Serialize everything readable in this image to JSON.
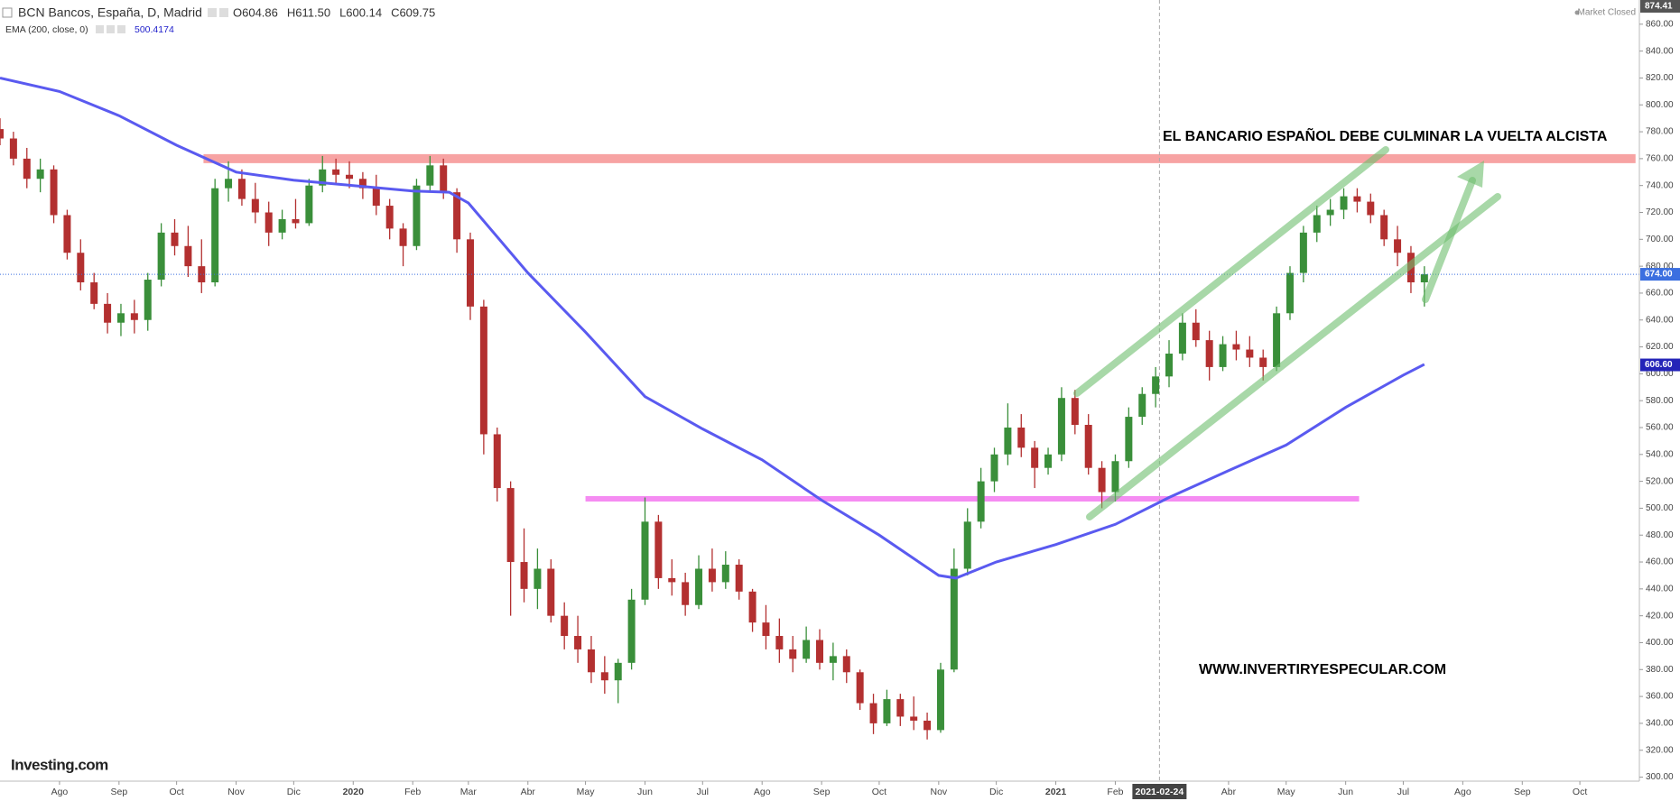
{
  "chart_data": {
    "type": "candlestick",
    "title": "BCN Bancos, España, D, Madrid",
    "ohlc_label": [
      "O604.86",
      "H611.50",
      "L600.14",
      "C609.75"
    ],
    "indicator_value": "500.4174",
    "status": "Market Closed",
    "logo": "Investing.com",
    "annotations": [
      "EL BANCARIO ESPAÑOL DEBE CULMINAR LA VUELTA ALCISTA",
      "WWW.INVERTIRYESPECULAR.COM"
    ],
    "up_color": "#3a8f3a",
    "down_color": "#b33030",
    "xlim": [
      "2019-07-01",
      "2021-11-01"
    ],
    "ylim": [
      297,
      878
    ],
    "xticks": [
      {
        "value": "2019-08-01",
        "label": "Ago"
      },
      {
        "value": "2019-09-01",
        "label": "Sep"
      },
      {
        "value": "2019-10-01",
        "label": "Oct"
      },
      {
        "value": "2019-11-01",
        "label": "Nov"
      },
      {
        "value": "2019-12-01",
        "label": "Dic"
      },
      {
        "value": "2020-01-01",
        "label": "2020"
      },
      {
        "value": "2020-02-01",
        "label": "Feb"
      },
      {
        "value": "2020-03-01",
        "label": "Mar"
      },
      {
        "value": "2020-04-01",
        "label": "Abr"
      },
      {
        "value": "2020-05-01",
        "label": "May"
      },
      {
        "value": "2020-06-01",
        "label": "Jun"
      },
      {
        "value": "2020-07-01",
        "label": "Jul"
      },
      {
        "value": "2020-08-01",
        "label": "Ago"
      },
      {
        "value": "2020-09-01",
        "label": "Sep"
      },
      {
        "value": "2020-10-01",
        "label": "Oct"
      },
      {
        "value": "2020-11-01",
        "label": "Nov"
      },
      {
        "value": "2020-12-01",
        "label": "Dic"
      },
      {
        "value": "2021-01-01",
        "label": "2021"
      },
      {
        "value": "2021-02-01",
        "label": "Feb"
      },
      {
        "value": "2021-04-01",
        "label": "Abr"
      },
      {
        "value": "2021-05-01",
        "label": "May"
      },
      {
        "value": "2021-06-01",
        "label": "Jun"
      },
      {
        "value": "2021-07-01",
        "label": "Jul"
      },
      {
        "value": "2021-08-01",
        "label": "Ago"
      },
      {
        "value": "2021-09-01",
        "label": "Sep"
      },
      {
        "value": "2021-10-01",
        "label": "Oct"
      }
    ],
    "yticks": [
      {
        "value": 300,
        "label": "300.00"
      },
      {
        "value": 320,
        "label": "320.00"
      },
      {
        "value": 340,
        "label": "340.00"
      },
      {
        "value": 360,
        "label": "360.00"
      },
      {
        "value": 380,
        "label": "380.00"
      },
      {
        "value": 400,
        "label": "400.00"
      },
      {
        "value": 420,
        "label": "420.00"
      },
      {
        "value": 440,
        "label": "440.00"
      },
      {
        "value": 460,
        "label": "460.00"
      },
      {
        "value": 480,
        "label": "480.00"
      },
      {
        "value": 500,
        "label": "500.00"
      },
      {
        "value": 520,
        "label": "520.00"
      },
      {
        "value": 540,
        "label": "540.00"
      },
      {
        "value": 560,
        "label": "560.00"
      },
      {
        "value": 580,
        "label": "580.00"
      },
      {
        "value": 600,
        "label": "600.00"
      },
      {
        "value": 620,
        "label": "620.00"
      },
      {
        "value": 640,
        "label": "640.00"
      },
      {
        "value": 660,
        "label": "660.00"
      },
      {
        "value": 680,
        "label": "680.00"
      },
      {
        "value": 700,
        "label": "700.00"
      },
      {
        "value": 720,
        "label": "720.00"
      },
      {
        "value": 740,
        "label": "740.00"
      },
      {
        "value": 760,
        "label": "760.00"
      },
      {
        "value": 780,
        "label": "780.00"
      },
      {
        "value": 800,
        "label": "800.00"
      },
      {
        "value": 820,
        "label": "820.00"
      },
      {
        "value": 840,
        "label": "840.00"
      },
      {
        "value": 860,
        "label": "860.00"
      }
    ],
    "price_markers": [
      {
        "value": 874.41,
        "label": "874.41",
        "color": "#555555"
      },
      {
        "value": 674,
        "label": "674.00",
        "color": "#3b6fe0",
        "line": true
      },
      {
        "value": 606.6,
        "label": "606.60",
        "color": "#2424b8"
      }
    ],
    "crosshair": "2021-02-24",
    "levels": [
      {
        "value": 760,
        "color": "#f7a3a3",
        "from": "2019-10-15",
        "to": "2021-10-30"
      },
      {
        "value": 507,
        "color": "#f58cf2",
        "from": "2020-05-01",
        "to": "2021-06-08"
      }
    ],
    "x": [
      "2019-07-01",
      "2019-07-08",
      "2019-07-15",
      "2019-07-22",
      "2019-07-29",
      "2019-08-05",
      "2019-08-12",
      "2019-08-19",
      "2019-08-26",
      "2019-09-02",
      "2019-09-09",
      "2019-09-16",
      "2019-09-23",
      "2019-09-30",
      "2019-10-07",
      "2019-10-14",
      "2019-10-21",
      "2019-10-28",
      "2019-11-04",
      "2019-11-11",
      "2019-11-18",
      "2019-11-25",
      "2019-12-02",
      "2019-12-09",
      "2019-12-16",
      "2019-12-23",
      "2019-12-30",
      "2020-01-06",
      "2020-01-13",
      "2020-01-20",
      "2020-01-27",
      "2020-02-03",
      "2020-02-10",
      "2020-02-17",
      "2020-02-24",
      "2020-03-02",
      "2020-03-09",
      "2020-03-16",
      "2020-03-23",
      "2020-03-30",
      "2020-04-06",
      "2020-04-13",
      "2020-04-20",
      "2020-04-27",
      "2020-05-04",
      "2020-05-11",
      "2020-05-18",
      "2020-05-25",
      "2020-06-01",
      "2020-06-08",
      "2020-06-15",
      "2020-06-22",
      "2020-06-29",
      "2020-07-06",
      "2020-07-13",
      "2020-07-20",
      "2020-07-27",
      "2020-08-03",
      "2020-08-10",
      "2020-08-17",
      "2020-08-24",
      "2020-08-31",
      "2020-09-07",
      "2020-09-14",
      "2020-09-21",
      "2020-09-28",
      "2020-10-05",
      "2020-10-12",
      "2020-10-19",
      "2020-10-26",
      "2020-11-02",
      "2020-11-09",
      "2020-11-16",
      "2020-11-23",
      "2020-11-30",
      "2020-12-07",
      "2020-12-14",
      "2020-12-21",
      "2020-12-28",
      "2021-01-04",
      "2021-01-11",
      "2021-01-18",
      "2021-01-25",
      "2021-02-01",
      "2021-02-08",
      "2021-02-15",
      "2021-02-22",
      "2021-03-01",
      "2021-03-08",
      "2021-03-15",
      "2021-03-22",
      "2021-03-29",
      "2021-04-05",
      "2021-04-12",
      "2021-04-19",
      "2021-04-26",
      "2021-05-03",
      "2021-05-10",
      "2021-05-17",
      "2021-05-24",
      "2021-05-31",
      "2021-06-07",
      "2021-06-14",
      "2021-06-21",
      "2021-06-28",
      "2021-07-05",
      "2021-07-12"
    ],
    "open": [
      782,
      775,
      760,
      745,
      752,
      718,
      690,
      668,
      652,
      638,
      645,
      640,
      670,
      705,
      695,
      680,
      668,
      738,
      745,
      730,
      720,
      705,
      715,
      712,
      740,
      752,
      748,
      745,
      738,
      725,
      708,
      695,
      740,
      755,
      735,
      700,
      650,
      555,
      515,
      460,
      440,
      455,
      420,
      405,
      395,
      378,
      372,
      385,
      432,
      490,
      448,
      445,
      428,
      455,
      445,
      458,
      438,
      415,
      405,
      395,
      388,
      402,
      385,
      390,
      378,
      355,
      340,
      358,
      345,
      342,
      335,
      380,
      455,
      490,
      520,
      540,
      560,
      545,
      530,
      540,
      582,
      562,
      530,
      512,
      535,
      568,
      585,
      598,
      615,
      638,
      625,
      605,
      622,
      618,
      612,
      605,
      645,
      675,
      705,
      718,
      722,
      732,
      728,
      718,
      700,
      690,
      668
    ],
    "high": [
      790,
      780,
      768,
      760,
      755,
      722,
      700,
      675,
      660,
      652,
      655,
      675,
      712,
      715,
      710,
      700,
      745,
      758,
      752,
      742,
      728,
      722,
      730,
      745,
      762,
      760,
      758,
      750,
      748,
      730,
      712,
      745,
      762,
      760,
      738,
      705,
      655,
      560,
      520,
      485,
      470,
      462,
      430,
      420,
      405,
      390,
      388,
      440,
      508,
      495,
      462,
      452,
      465,
      470,
      468,
      462,
      440,
      428,
      418,
      405,
      412,
      410,
      400,
      395,
      380,
      362,
      365,
      362,
      360,
      348,
      385,
      470,
      500,
      530,
      545,
      578,
      570,
      550,
      545,
      590,
      588,
      570,
      535,
      540,
      575,
      590,
      605,
      625,
      645,
      648,
      632,
      628,
      632,
      628,
      618,
      650,
      680,
      710,
      725,
      730,
      738,
      738,
      734,
      722,
      710,
      695,
      680
    ],
    "low": [
      770,
      755,
      738,
      735,
      712,
      685,
      662,
      648,
      630,
      628,
      630,
      632,
      665,
      688,
      672,
      660,
      665,
      728,
      725,
      712,
      695,
      700,
      708,
      710,
      735,
      742,
      738,
      730,
      718,
      700,
      680,
      692,
      735,
      730,
      690,
      640,
      540,
      505,
      420,
      430,
      425,
      415,
      395,
      385,
      370,
      362,
      355,
      380,
      428,
      440,
      435,
      420,
      425,
      438,
      440,
      432,
      408,
      395,
      385,
      378,
      385,
      380,
      372,
      370,
      350,
      332,
      338,
      338,
      335,
      328,
      333,
      378,
      450,
      485,
      512,
      532,
      538,
      515,
      525,
      535,
      555,
      525,
      500,
      505,
      530,
      562,
      575,
      590,
      610,
      620,
      595,
      602,
      610,
      605,
      595,
      602,
      640,
      668,
      698,
      710,
      715,
      720,
      712,
      695,
      680,
      660,
      650
    ],
    "close": [
      775,
      760,
      745,
      752,
      718,
      690,
      668,
      652,
      638,
      645,
      640,
      670,
      705,
      695,
      680,
      668,
      738,
      745,
      730,
      720,
      705,
      715,
      712,
      740,
      752,
      748,
      745,
      738,
      725,
      708,
      695,
      740,
      755,
      735,
      700,
      650,
      555,
      515,
      460,
      440,
      455,
      420,
      405,
      395,
      378,
      372,
      385,
      432,
      490,
      448,
      445,
      428,
      455,
      445,
      458,
      438,
      415,
      405,
      395,
      388,
      402,
      385,
      390,
      378,
      355,
      340,
      358,
      345,
      342,
      335,
      380,
      455,
      490,
      520,
      540,
      560,
      545,
      530,
      540,
      582,
      562,
      530,
      512,
      535,
      568,
      585,
      598,
      615,
      638,
      625,
      605,
      622,
      618,
      612,
      605,
      645,
      675,
      705,
      718,
      722,
      732,
      728,
      718,
      700,
      690,
      668,
      674
    ],
    "series": [
      {
        "name": "EMA (200, close, 0)",
        "color": "#5a5af0",
        "x": [
          "2019-07-01",
          "2019-08-01",
          "2019-09-01",
          "2019-10-01",
          "2019-11-01",
          "2019-12-01",
          "2020-01-01",
          "2020-02-01",
          "2020-02-20",
          "2020-03-01",
          "2020-04-01",
          "2020-05-01",
          "2020-06-01",
          "2020-07-01",
          "2020-08-01",
          "2020-09-01",
          "2020-10-01",
          "2020-11-01",
          "2020-11-10",
          "2020-12-01",
          "2021-01-01",
          "2021-02-01",
          "2021-03-01",
          "2021-04-01",
          "2021-05-01",
          "2021-06-01",
          "2021-07-01",
          "2021-07-12"
        ],
        "values": [
          820,
          810,
          792,
          770,
          750,
          744,
          740,
          736,
          735,
          727,
          675,
          631,
          583,
          559,
          536,
          506,
          480,
          450,
          448,
          460,
          473,
          488,
          508,
          528,
          547,
          575,
          599,
          607
        ]
      }
    ]
  }
}
